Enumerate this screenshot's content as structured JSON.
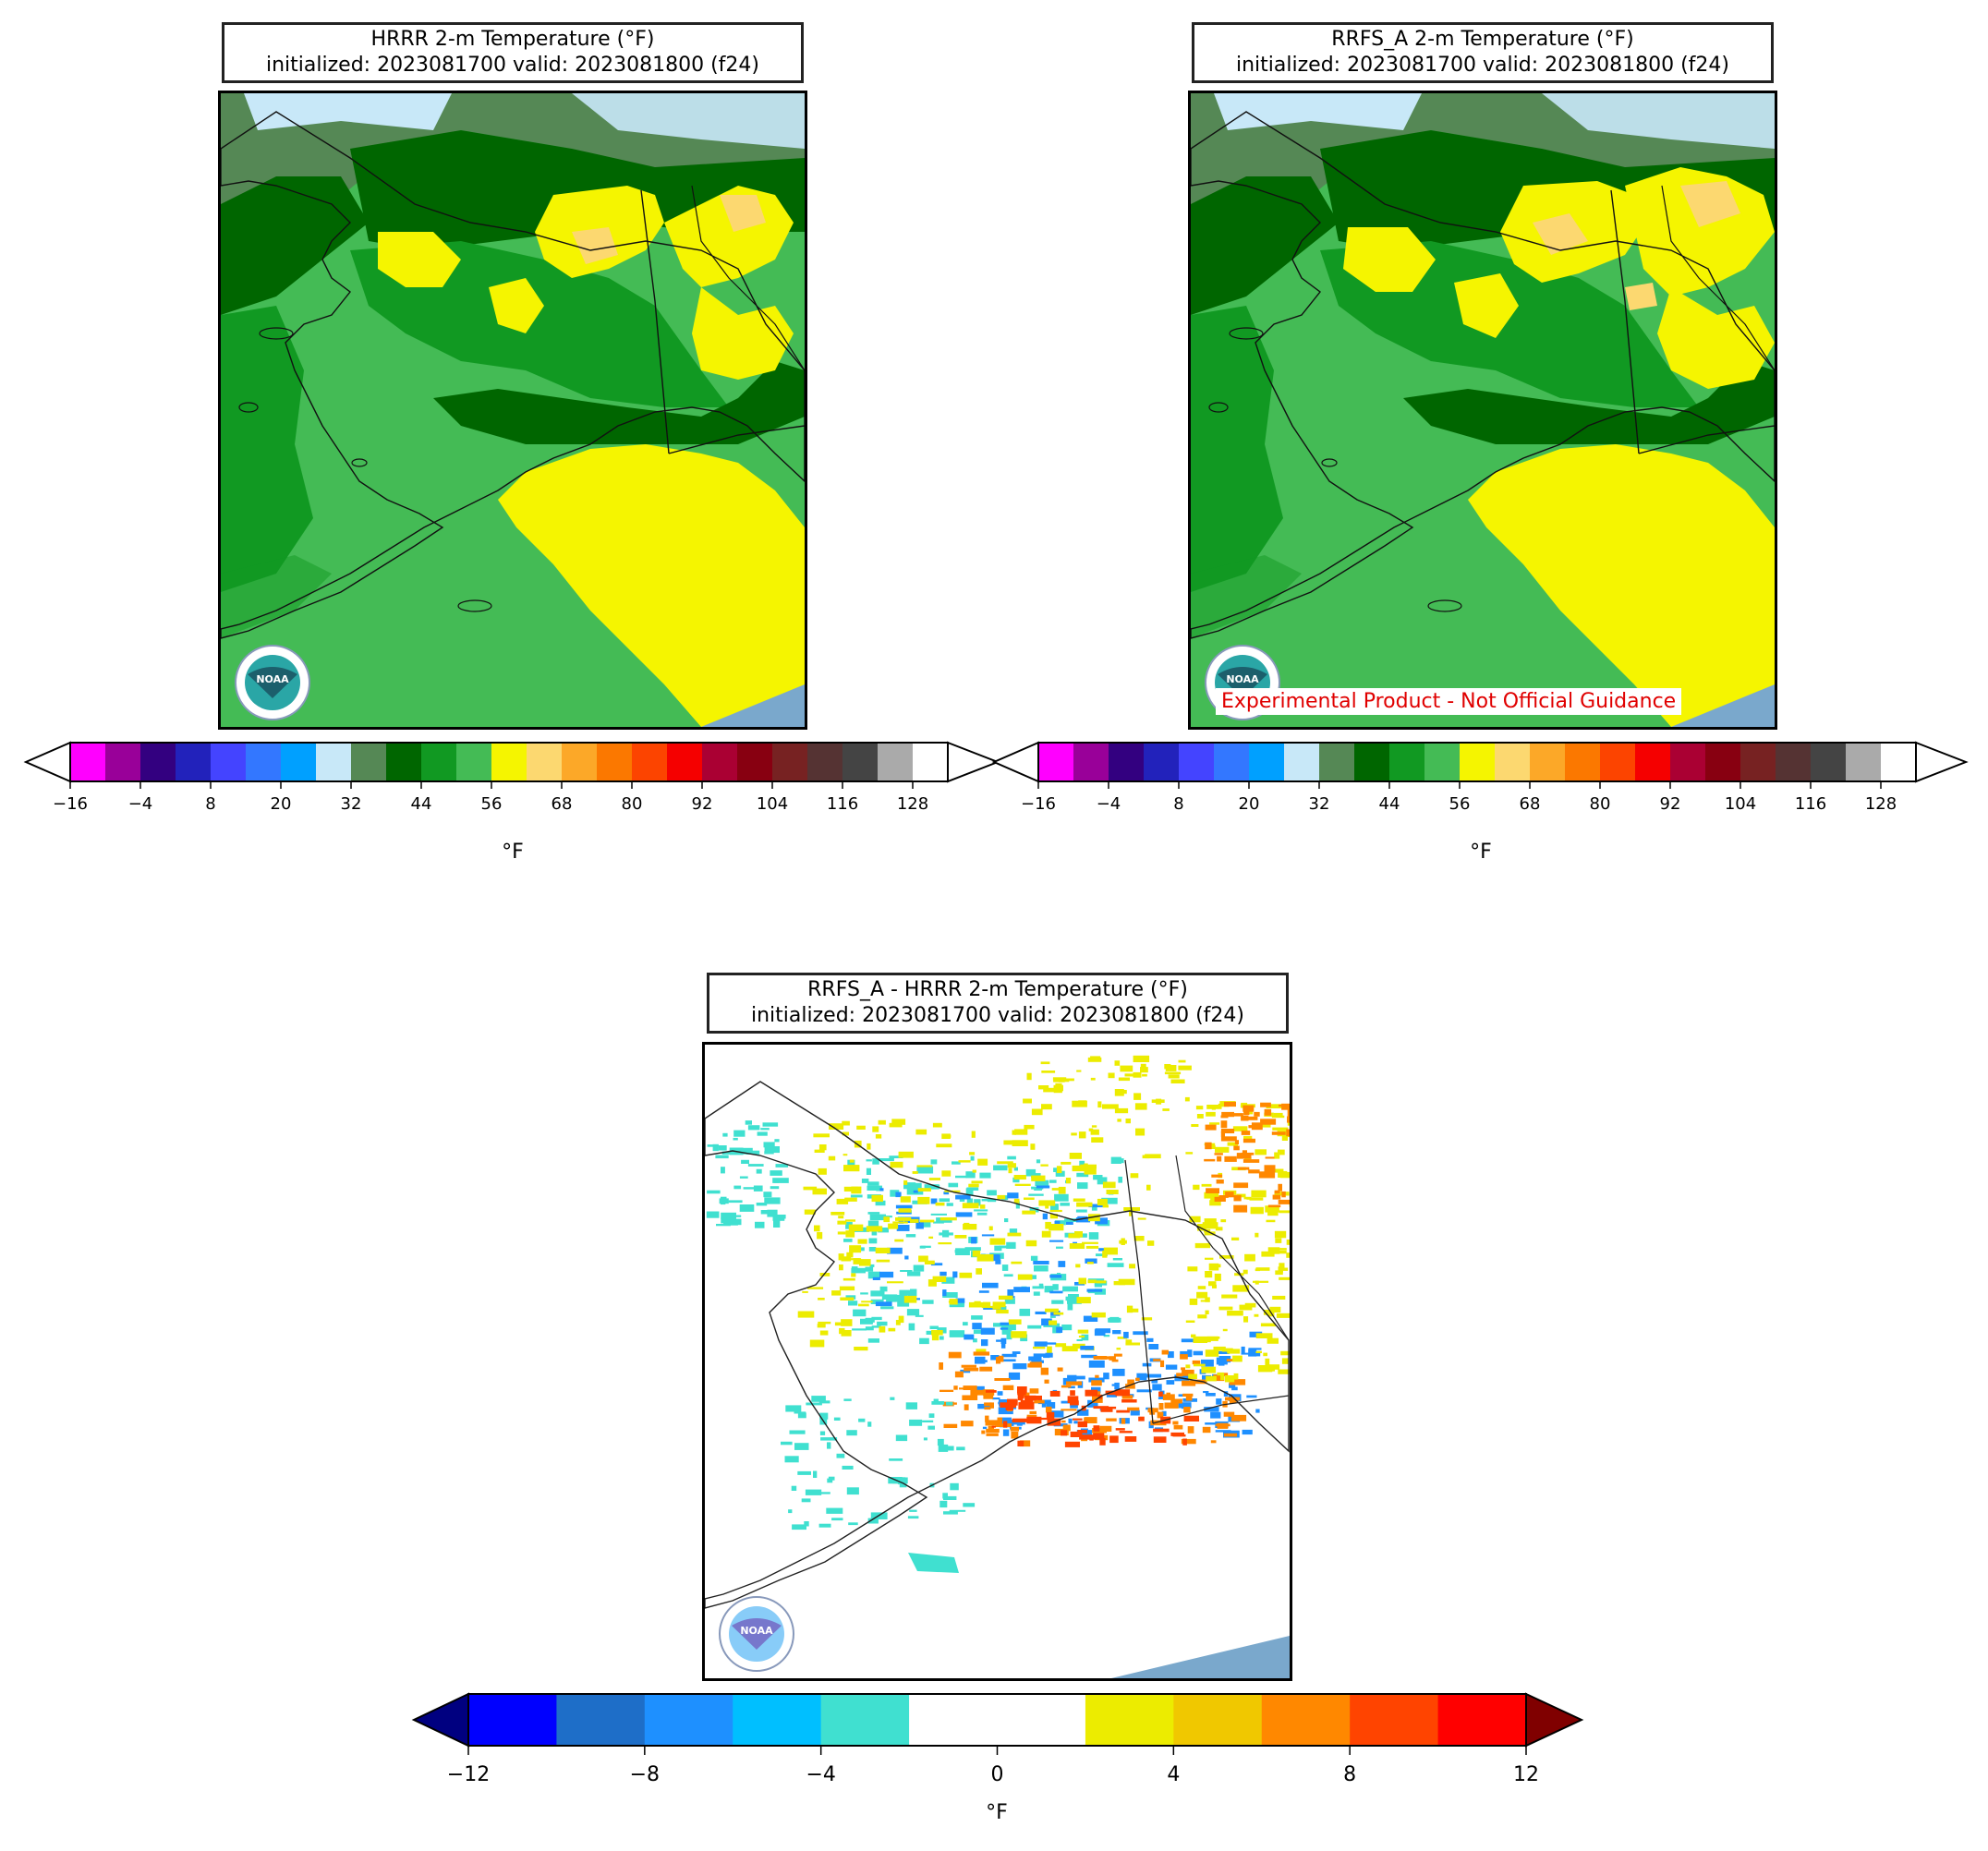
{
  "panels": [
    {
      "id": "hrrr",
      "title_line1": "HRRR 2-m Temperature (°F)",
      "title_line2": "initialized: 2023081700 valid: 2023081800 (f24)"
    },
    {
      "id": "rrfs",
      "title_line1": "RRFS_A 2-m Temperature (°F)",
      "title_line2": "initialized: 2023081700 valid: 2023081800 (f24)",
      "disclaimer": "Experimental Product - Not Official Guidance"
    },
    {
      "id": "diff",
      "title_line1": "RRFS_A - HRRR 2-m Temperature (°F)",
      "title_line2": "initialized: 2023081700 valid: 2023081800 (f24)"
    }
  ],
  "logo_text": "NOAA",
  "temp_colorbar": {
    "unit": "°F",
    "ticks": [
      "−16",
      "−4",
      "8",
      "20",
      "32",
      "44",
      "56",
      "68",
      "80",
      "92",
      "104",
      "116",
      "128"
    ],
    "colors": [
      "#ff00ff",
      "#990099",
      "#330080",
      "#2222bb",
      "#4444ff",
      "#3377ff",
      "#00a0ff",
      "#c8e8f8",
      "#558855",
      "#006600",
      "#119922",
      "#44bb55",
      "#f5f500",
      "#fcd870",
      "#fca828",
      "#fb7800",
      "#fc4400",
      "#f50000",
      "#aa0033",
      "#880011",
      "#772222",
      "#553333",
      "#444444",
      "#aaaaaa",
      "#ffffff"
    ]
  },
  "diff_colorbar": {
    "unit": "°F",
    "ticks": [
      "−12",
      "−8",
      "−4",
      "0",
      "4",
      "8",
      "12"
    ],
    "under_color": "#000080",
    "over_color": "#800000",
    "colors": [
      "#0000ff",
      "#1e6ec8",
      "#1e90ff",
      "#00bfff",
      "#40e0d0",
      "#ffffff",
      "#ffffff",
      "#ecec00",
      "#f0c800",
      "#ff8800",
      "#ff4400",
      "#ff0000"
    ]
  },
  "map_colors": {
    "ocean_north": "#558855",
    "ice": "#c8e8f8",
    "land_dark": "#006600",
    "land_mid": "#119922",
    "land_light": "#44bb55",
    "warm": "#f5f500",
    "warmer": "#fcd870",
    "sea_gulf": "#f5f500",
    "gray_corner": "#7aa8cc",
    "diff_blue": "#40e0d0",
    "diff_blue2": "#1e90ff",
    "diff_yellow": "#ecec00",
    "diff_orange": "#ff8800",
    "diff_red": "#ff4400"
  }
}
